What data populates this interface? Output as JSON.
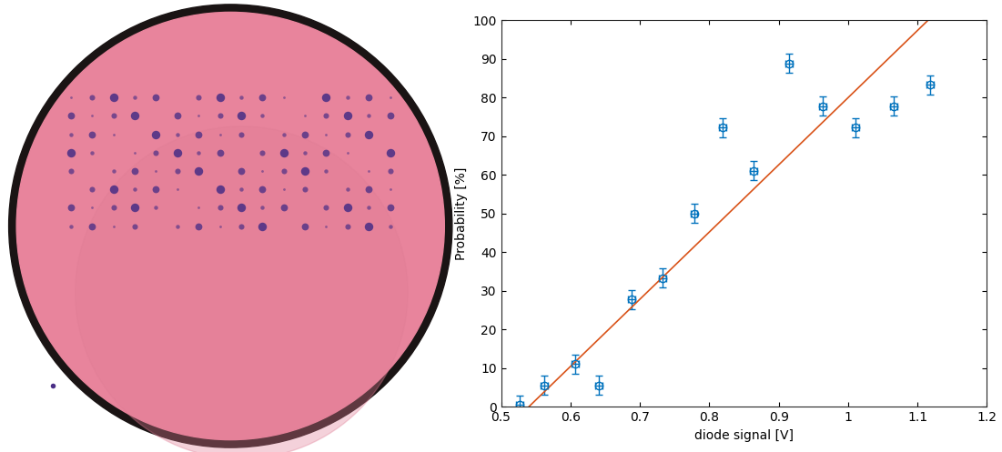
{
  "chart_data": {
    "type": "scatter",
    "x_label": "diode signal [V]",
    "y_label": "Probability [%]",
    "xlim": [
      0.5,
      1.2
    ],
    "xticks": [
      0.5,
      0.6,
      0.7,
      0.8,
      0.9,
      1,
      1.1,
      1.2
    ],
    "ylim": [
      0,
      100
    ],
    "yticks": [
      0,
      10,
      20,
      30,
      40,
      50,
      60,
      70,
      80,
      90,
      100
    ],
    "grid": false,
    "series": [
      {
        "type": "scatter",
        "color": "#0072bd",
        "marker": "circle",
        "line_style": "none",
        "x": [
          0.527,
          0.562,
          0.607,
          0.641,
          0.688,
          0.733,
          0.778,
          0.819,
          0.864,
          0.915,
          0.963,
          1.011,
          1.066,
          1.118
        ],
        "values": [
          0.5,
          5.6,
          11.1,
          5.6,
          27.8,
          33.3,
          50.0,
          72.2,
          61.1,
          88.9,
          77.8,
          72.2,
          77.8,
          83.3
        ],
        "x_error": [
          0.005,
          0.005,
          0.005,
          0.005,
          0.005,
          0.005,
          0.005,
          0.005,
          0.005,
          0.005,
          0.005,
          0.005,
          0.005,
          0.005
        ],
        "y_error": [
          2.5,
          2.5,
          2.5,
          2.5,
          2.5,
          2.5,
          2.5,
          2.5,
          2.5,
          2.5,
          2.5,
          2.5,
          2.5,
          2.5
        ]
      },
      {
        "type": "line",
        "color": "#d95319",
        "line_style": "solid",
        "x": [
          0.54,
          1.115
        ],
        "values": [
          0,
          100
        ]
      }
    ]
  }
}
